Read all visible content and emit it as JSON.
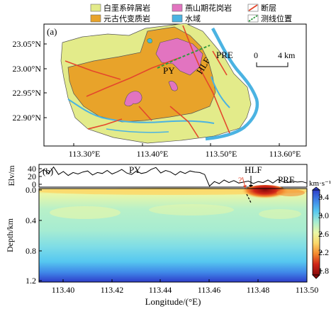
{
  "legend": {
    "items": [
      {
        "label": "白垩系碎屑岩",
        "color": "#e3eb8a",
        "kind": "fill"
      },
      {
        "label": "燕山期花岗岩",
        "color": "#e274c0",
        "kind": "fill"
      },
      {
        "label": "断层",
        "color": "#e4472c",
        "kind": "line"
      },
      {
        "label": "元古代变质岩",
        "color": "#e8a32a",
        "kind": "fill"
      },
      {
        "label": "水域",
        "color": "#4bb3e2",
        "kind": "fill"
      },
      {
        "label": "测线位置",
        "color": "#2e9a3e",
        "kind": "dashed"
      }
    ]
  },
  "map": {
    "panel_label": "(a)",
    "x_ticks": [
      "113.30°E",
      "113.40°E",
      "113.50°E",
      "113.60°E"
    ],
    "y_ticks": [
      "23.05°N",
      "23.00°N",
      "22.95°N",
      "22.90°N"
    ],
    "annotations": {
      "py": "PY",
      "hlf": "HLF",
      "pre": "PRE"
    },
    "scale_bar": {
      "zero": "0",
      "length": "4 km"
    }
  },
  "profile": {
    "panel_label": "(b)",
    "elev_ylabel": "Elv/m",
    "elev_ticks": [
      "40",
      "20",
      "0"
    ],
    "depth_ylabel": "Depth/km",
    "depth_ticks": [
      "0.0",
      "0.4",
      "0.8",
      "1.2"
    ],
    "x_ticks": [
      "113.40",
      "113.42",
      "113.44",
      "113.46",
      "113.48",
      "113.50"
    ],
    "xlabel": "Longitude/(°E)",
    "annotations": {
      "py": "PY",
      "hlf": "HLF",
      "pre": "PRE",
      "question": "?"
    },
    "colorbar": {
      "title": "km·s⁻¹",
      "ticks": [
        "3.4",
        "3.0",
        "2.6",
        "2.2",
        "1.8"
      ],
      "colors": [
        "#2e3dc9",
        "#3f86e8",
        "#56c8f0",
        "#a6ecd2",
        "#e9f7a8",
        "#fbd86a",
        "#f48a2f",
        "#cf2417",
        "#8a0b0b"
      ]
    }
  },
  "chart_data": {
    "type": "line",
    "title": "",
    "xlabel": "",
    "ylabel": "Elv/m",
    "xlim": [
      113.39,
      113.5
    ],
    "ylim": [
      -5,
      40
    ],
    "x": [
      113.39,
      113.392,
      113.394,
      113.396,
      113.398,
      113.4,
      113.402,
      113.404,
      113.406,
      113.408,
      113.41,
      113.412,
      113.414,
      113.416,
      113.418,
      113.42,
      113.422,
      113.424,
      113.426,
      113.428,
      113.43,
      113.432,
      113.434,
      113.436,
      113.438,
      113.44,
      113.442,
      113.444,
      113.446,
      113.448,
      113.45,
      113.452,
      113.454,
      113.456,
      113.458,
      113.46,
      113.462,
      113.464,
      113.466,
      113.468,
      113.47,
      113.472,
      113.474,
      113.476,
      113.478,
      113.48,
      113.482,
      113.484,
      113.486,
      113.488,
      113.49,
      113.492,
      113.494,
      113.496,
      113.498,
      113.5
    ],
    "y": [
      23,
      30,
      22,
      35,
      20,
      26,
      18,
      24,
      21,
      25,
      27,
      19,
      24,
      22,
      28,
      21,
      25,
      30,
      23,
      20,
      27,
      22,
      24,
      30,
      34,
      23,
      28,
      25,
      19,
      26,
      22,
      27,
      25,
      24,
      20,
      -3,
      6,
      2,
      9,
      4,
      8,
      3,
      5,
      7,
      2,
      6,
      4,
      9,
      3,
      10,
      6,
      4,
      7,
      5,
      6,
      3
    ]
  }
}
